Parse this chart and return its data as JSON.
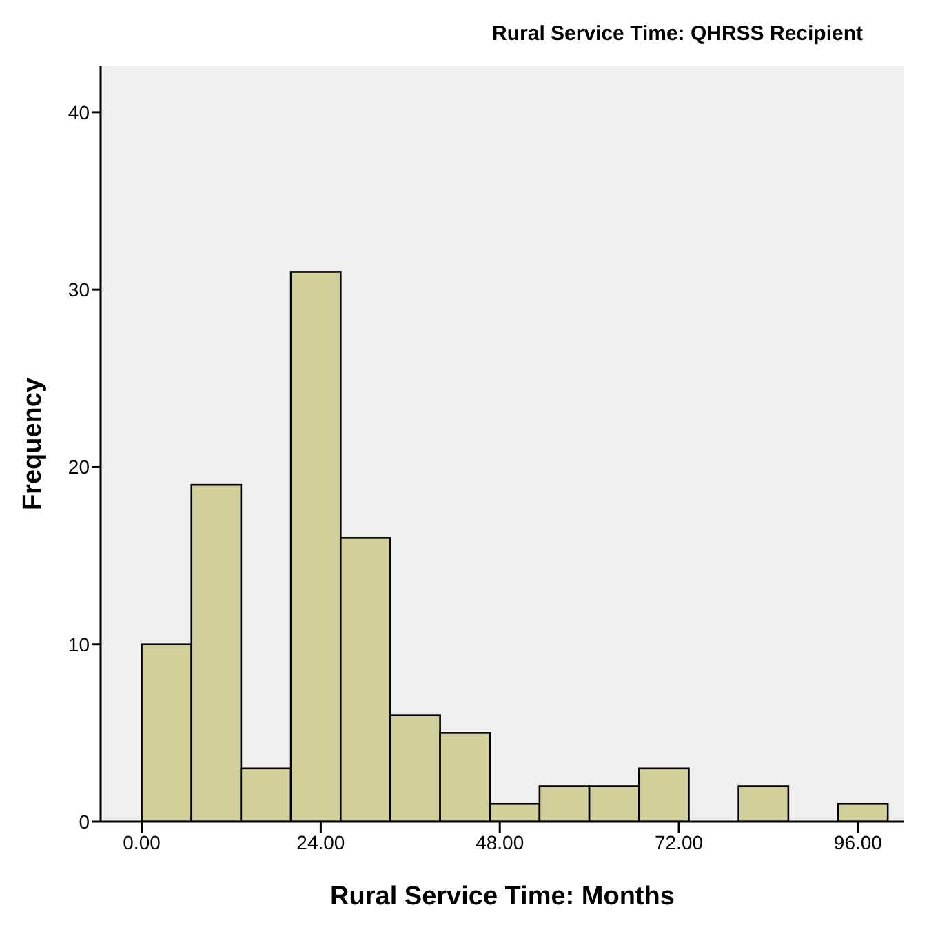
{
  "chart_data": {
    "type": "histogram",
    "title": "Rural Service Time: QHRSS Recipient",
    "xlabel": "Rural Service Time: Months",
    "ylabel": "Frequency",
    "bins": [
      0,
      6.67,
      13.33,
      20,
      26.67,
      33.33,
      40,
      46.67,
      53.33,
      60,
      66.67,
      73.33,
      80,
      86.67,
      93.33,
      100
    ],
    "values": [
      10,
      19,
      3,
      31,
      16,
      6,
      5,
      1,
      2,
      2,
      3,
      0,
      2,
      0,
      1
    ],
    "color": "#d3cf9a",
    "xlim": [
      -5.5,
      102.2
    ],
    "xticks": [
      {
        "value": 0,
        "label": "0.00"
      },
      {
        "value": 24,
        "label": "24.00"
      },
      {
        "value": 48,
        "label": "48.00"
      },
      {
        "value": 72,
        "label": "72.00"
      },
      {
        "value": 96,
        "label": "96.00"
      }
    ],
    "ylim": [
      0,
      42.6
    ],
    "yticks": [
      0,
      10,
      20,
      30,
      40
    ],
    "grid": false
  }
}
